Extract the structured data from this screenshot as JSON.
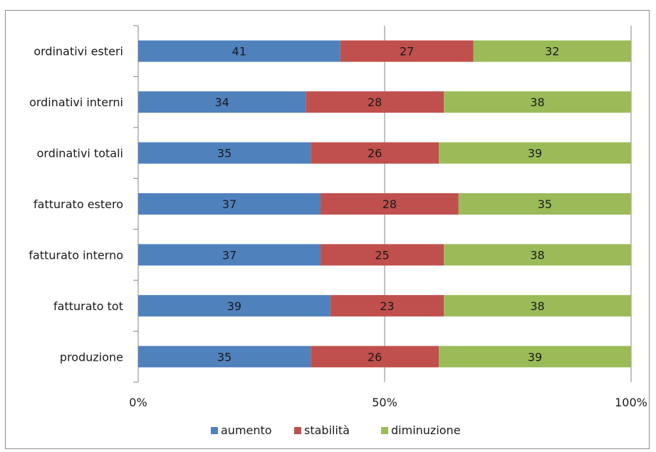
{
  "chart_data": {
    "type": "bar",
    "orientation": "horizontal",
    "stacked": "percent",
    "categories": [
      "ordinativi esteri",
      "ordinativi interni",
      "ordinativi totali",
      "fatturato estero",
      "fatturato interno",
      "fatturato tot",
      "produzione"
    ],
    "series": [
      {
        "name": "aumento",
        "color": "#4f81bd",
        "values": [
          41,
          34,
          35,
          37,
          37,
          39,
          35
        ]
      },
      {
        "name": "stabilità",
        "color": "#c0504d",
        "values": [
          27,
          28,
          26,
          28,
          25,
          23,
          26
        ]
      },
      {
        "name": "diminuzione",
        "color": "#9bbb59",
        "values": [
          32,
          38,
          39,
          35,
          38,
          38,
          39
        ]
      }
    ],
    "x_ticks": [
      "0%",
      "50%",
      "100%"
    ],
    "xlim": [
      0,
      100
    ],
    "grid": "vertical",
    "legend": "bottom",
    "title": "",
    "xlabel": "",
    "ylabel": ""
  }
}
